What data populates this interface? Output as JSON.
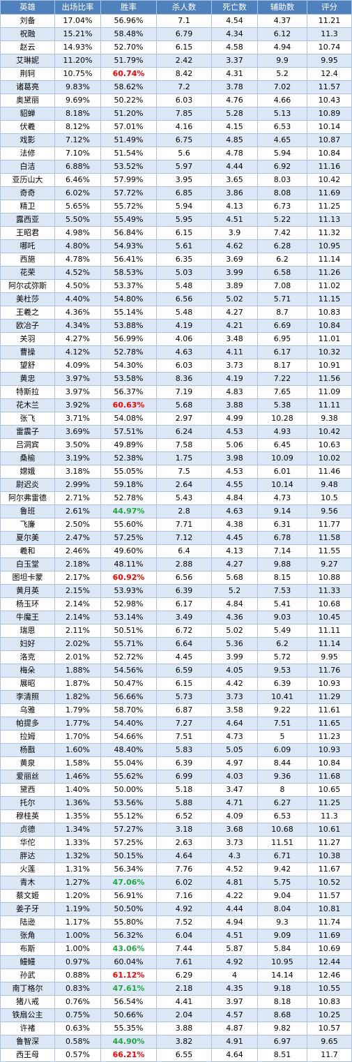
{
  "headers": [
    "英雄",
    "出场比率",
    "胜率",
    "杀人数",
    "死亡数",
    "辅助数",
    "评分"
  ],
  "colors": {
    "header_bg": "#4f81bd",
    "stripe": "#dbe7f4",
    "border": "#a9c4e6",
    "high_winrate": "#ff0000",
    "low_winrate": "#1fa843"
  },
  "rows": [
    [
      "刘备",
      "17.04%",
      "56.96%",
      "7.1",
      "4.54",
      "4.37",
      "11.21"
    ],
    [
      "祝融",
      "15.21%",
      "58.48%",
      "6.79",
      "4.34",
      "6.12",
      "11.3"
    ],
    [
      "赵云",
      "14.93%",
      "52.70%",
      "6.15",
      "4.58",
      "4.94",
      "10.74"
    ],
    [
      "艾琳妮",
      "11.20%",
      "51.79%",
      "2.42",
      "3.37",
      "9.9",
      "9.95"
    ],
    [
      "荆轲",
      "10.75%",
      "60.74%",
      "8.42",
      "4.31",
      "5.2",
      "12.4"
    ],
    [
      "诸葛亮",
      "9.83%",
      "58.62%",
      "7.2",
      "3.78",
      "7.02",
      "11.57"
    ],
    [
      "奥黛丽",
      "9.69%",
      "50.22%",
      "6.03",
      "4.76",
      "4.66",
      "10.43"
    ],
    [
      "貂蝉",
      "8.18%",
      "51.20%",
      "7.85",
      "5.28",
      "5.13",
      "10.89"
    ],
    [
      "伏羲",
      "8.12%",
      "57.01%",
      "4.16",
      "4.15",
      "6.53",
      "10.14"
    ],
    [
      "戏影",
      "7.12%",
      "51.49%",
      "6.75",
      "4.85",
      "4.65",
      "10.87"
    ],
    [
      "法修",
      "7.10%",
      "51.54%",
      "5.6",
      "4.78",
      "5.94",
      "10.84"
    ],
    [
      "白洁",
      "6.88%",
      "53.52%",
      "5.97",
      "4.44",
      "6.92",
      "11.16"
    ],
    [
      "亚历山大",
      "6.46%",
      "57.99%",
      "3.95",
      "3.65",
      "8.03",
      "10.42"
    ],
    [
      "奇奇",
      "6.02%",
      "57.72%",
      "6.85",
      "3.86",
      "8.08",
      "11.69"
    ],
    [
      "精卫",
      "5.65%",
      "55.72%",
      "5.94",
      "4.13",
      "6.73",
      "11.25"
    ],
    [
      "露西亚",
      "5.50%",
      "55.49%",
      "5.95",
      "4.51",
      "5.22",
      "11.13"
    ],
    [
      "王昭君",
      "4.98%",
      "56.84%",
      "6.15",
      "3.9",
      "7.42",
      "11.32"
    ],
    [
      "哪吒",
      "4.80%",
      "54.93%",
      "5.61",
      "4.62",
      "6.28",
      "10.95"
    ],
    [
      "西施",
      "4.78%",
      "56.41%",
      "6.35",
      "3.69",
      "6.2",
      "11.14"
    ],
    [
      "花荣",
      "4.52%",
      "58.53%",
      "5.03",
      "3.99",
      "6.58",
      "11.26"
    ],
    [
      "阿尔忒弥斯",
      "4.50%",
      "53.37%",
      "5.48",
      "3.89",
      "7.08",
      "11.02"
    ],
    [
      "美杜莎",
      "4.40%",
      "54.80%",
      "6.56",
      "5.02",
      "5.71",
      "11.15"
    ],
    [
      "王羲之",
      "4.36%",
      "55.14%",
      "5.48",
      "4.27",
      "8.7",
      "10.83"
    ],
    [
      "欧冶子",
      "4.34%",
      "53.88%",
      "4.19",
      "4.21",
      "6.69",
      "10.84"
    ],
    [
      "关羽",
      "4.27%",
      "56.99%",
      "4.06",
      "3.48",
      "6.95",
      "11.01"
    ],
    [
      "曹操",
      "4.12%",
      "52.78%",
      "4.63",
      "4.11",
      "6.17",
      "10.32"
    ],
    [
      "望舒",
      "4.09%",
      "54.30%",
      "6.03",
      "3.73",
      "8.17",
      "10.91"
    ],
    [
      "黄忠",
      "3.97%",
      "53.58%",
      "8.36",
      "4.19",
      "7.22",
      "11.56"
    ],
    [
      "特斯拉",
      "3.97%",
      "56.37%",
      "7.19",
      "4.83",
      "7.65",
      "11.09"
    ],
    [
      "花木兰",
      "3.92%",
      "60.63%",
      "5.68",
      "3.88",
      "5.38",
      "11.11"
    ],
    [
      "张飞",
      "3.71%",
      "54.08%",
      "2.97",
      "4.99",
      "10.28",
      "9.38"
    ],
    [
      "雷震子",
      "3.69%",
      "57.51%",
      "6.24",
      "4.53",
      "4.93",
      "10.42"
    ],
    [
      "吕洞宾",
      "3.50%",
      "49.89%",
      "7.58",
      "5.06",
      "6.45",
      "10.63"
    ],
    [
      "桑榆",
      "3.19%",
      "52.38%",
      "1.75",
      "3.98",
      "10.09",
      "10.02"
    ],
    [
      "嫦娥",
      "3.18%",
      "55.05%",
      "7.5",
      "4.53",
      "6.01",
      "11.46"
    ],
    [
      "尉迟炎",
      "2.99%",
      "59.18%",
      "2.64",
      "4.55",
      "10.14",
      "9.48"
    ],
    [
      "阿尔弗雷德",
      "2.71%",
      "52.78%",
      "5.43",
      "4.84",
      "4.73",
      "10.5"
    ],
    [
      "鲁班",
      "2.61%",
      "44.97%",
      "2.8",
      "4.63",
      "9.14",
      "9.56"
    ],
    [
      "飞廉",
      "2.50%",
      "55.60%",
      "7.71",
      "4.38",
      "6.31",
      "11.77"
    ],
    [
      "夏尔美",
      "2.47%",
      "57.25%",
      "7.12",
      "4.45",
      "6.78",
      "11.58"
    ],
    [
      "羲和",
      "2.46%",
      "49.60%",
      "6.4",
      "4.13",
      "7.14",
      "11.55"
    ],
    [
      "白玉堂",
      "2.18%",
      "48.11%",
      "2.88",
      "4.27",
      "9.88",
      "9.27"
    ],
    [
      "图坦卡蒙",
      "2.17%",
      "60.92%",
      "6.56",
      "5.68",
      "8.15",
      "10.88"
    ],
    [
      "黄月英",
      "2.15%",
      "53.93%",
      "6.39",
      "5.2",
      "7.53",
      "11.33"
    ],
    [
      "杨玉环",
      "2.14%",
      "52.98%",
      "6.17",
      "4.84",
      "5.41",
      "10.68"
    ],
    [
      "牛魔王",
      "2.14%",
      "53.14%",
      "3.49",
      "4.36",
      "9.03",
      "10.45"
    ],
    [
      "瑞恩",
      "2.11%",
      "50.51%",
      "6.72",
      "5.02",
      "5.49",
      "11.11"
    ],
    [
      "妇好",
      "2.02%",
      "55.71%",
      "6.64",
      "5.36",
      "6.2",
      "11.14"
    ],
    [
      "洛克",
      "2.01%",
      "52.72%",
      "4.45",
      "3.99",
      "5.72",
      "9.95"
    ],
    [
      "梅朵",
      "1.88%",
      "54.56%",
      "6.59",
      "4.05",
      "9.53",
      "11.76"
    ],
    [
      "展昭",
      "1.87%",
      "50.47%",
      "6.15",
      "4.42",
      "6.39",
      "10.93"
    ],
    [
      "李清照",
      "1.82%",
      "56.66%",
      "5.73",
      "3.73",
      "10.41",
      "11.29"
    ],
    [
      "乌雅",
      "1.79%",
      "58.70%",
      "6.87",
      "3.58",
      "9.22",
      "11.61"
    ],
    [
      "帕提多",
      "1.77%",
      "54.40%",
      "7.27",
      "4.64",
      "7.51",
      "11.65"
    ],
    [
      "拉姆",
      "1.70%",
      "54.66%",
      "7.51",
      "4.73",
      "5",
      "11.23"
    ],
    [
      "杨戬",
      "1.60%",
      "48.40%",
      "5.83",
      "5.05",
      "6.09",
      "10.93"
    ],
    [
      "黄泉",
      "1.58%",
      "55.04%",
      "6.39",
      "4.97",
      "8.44",
      "10.84"
    ],
    [
      "爱丽丝",
      "1.46%",
      "55.62%",
      "6.99",
      "4.03",
      "9.36",
      "11.68"
    ],
    [
      "黛西",
      "1.40%",
      "50.00%",
      "5.18",
      "3.47",
      "8",
      "10.65"
    ],
    [
      "托尔",
      "1.36%",
      "53.56%",
      "5.88",
      "4.71",
      "6.27",
      "11.25"
    ],
    [
      "穆桂英",
      "1.35%",
      "55.12%",
      "6.52",
      "4.09",
      "6.53",
      "11.3"
    ],
    [
      "贞德",
      "1.34%",
      "57.27%",
      "3.18",
      "3.68",
      "10.68",
      "10.61"
    ],
    [
      "华佗",
      "1.33%",
      "57.25%",
      "2.63",
      "3.73",
      "11.51",
      "11.27"
    ],
    [
      "胖达",
      "1.32%",
      "50.15%",
      "4.64",
      "4.3",
      "6.71",
      "10.38"
    ],
    [
      "火莲",
      "1.31%",
      "56.34%",
      "7.76",
      "4.52",
      "9.42",
      "11.67"
    ],
    [
      "青木",
      "1.27%",
      "47.06%",
      "6.02",
      "4.81",
      "5.75",
      "10.52"
    ],
    [
      "蔡文姬",
      "1.20%",
      "56.91%",
      "7.16",
      "4.22",
      "9.04",
      "11.57"
    ],
    [
      "姜子牙",
      "1.19%",
      "50.50%",
      "4.92",
      "4.44",
      "8.04",
      "10.81"
    ],
    [
      "陆逊",
      "1.17%",
      "55.80%",
      "7.52",
      "4.94",
      "9.3",
      "11.74"
    ],
    [
      "张角",
      "1.00%",
      "56.32%",
      "6.04",
      "4.51",
      "9.09",
      "11.69"
    ],
    [
      "布斯",
      "1.00%",
      "43.06%",
      "7.44",
      "5.87",
      "5.84",
      "10.69"
    ],
    [
      "鳗鳗",
      "0.97%",
      "60.04%",
      "7.61",
      "4.92",
      "10.95",
      "12.44"
    ],
    [
      "孙武",
      "0.88%",
      "61.12%",
      "6.29",
      "4",
      "14.14",
      "12.46"
    ],
    [
      "南丁格尔",
      "0.83%",
      "47.61%",
      "2.18",
      "4.35",
      "9.18",
      "10.55"
    ],
    [
      "猪八戒",
      "0.76%",
      "56.54%",
      "4.41",
      "3.97",
      "8.18",
      "10.83"
    ],
    [
      "铁扇公主",
      "0.75%",
      "50.66%",
      "2.04",
      "4.57",
      "8.68",
      "10.25"
    ],
    [
      "许褚",
      "0.63%",
      "55.35%",
      "3.88",
      "4.87",
      "9.82",
      "10.57"
    ],
    [
      "鲁智深",
      "0.58%",
      "44.90%",
      "3.82",
      "4.91",
      "6.97",
      "9.65"
    ],
    [
      "西王母",
      "0.57%",
      "66.21%",
      "6.55",
      "4.64",
      "8.51",
      "11.7"
    ]
  ],
  "highlights": {
    "red": [
      "荆轲",
      "花木兰",
      "图坦卡蒙",
      "孙武",
      "西王母"
    ],
    "green": [
      "鲁班",
      "青木",
      "布斯",
      "南丁格尔",
      "鲁智深"
    ]
  }
}
